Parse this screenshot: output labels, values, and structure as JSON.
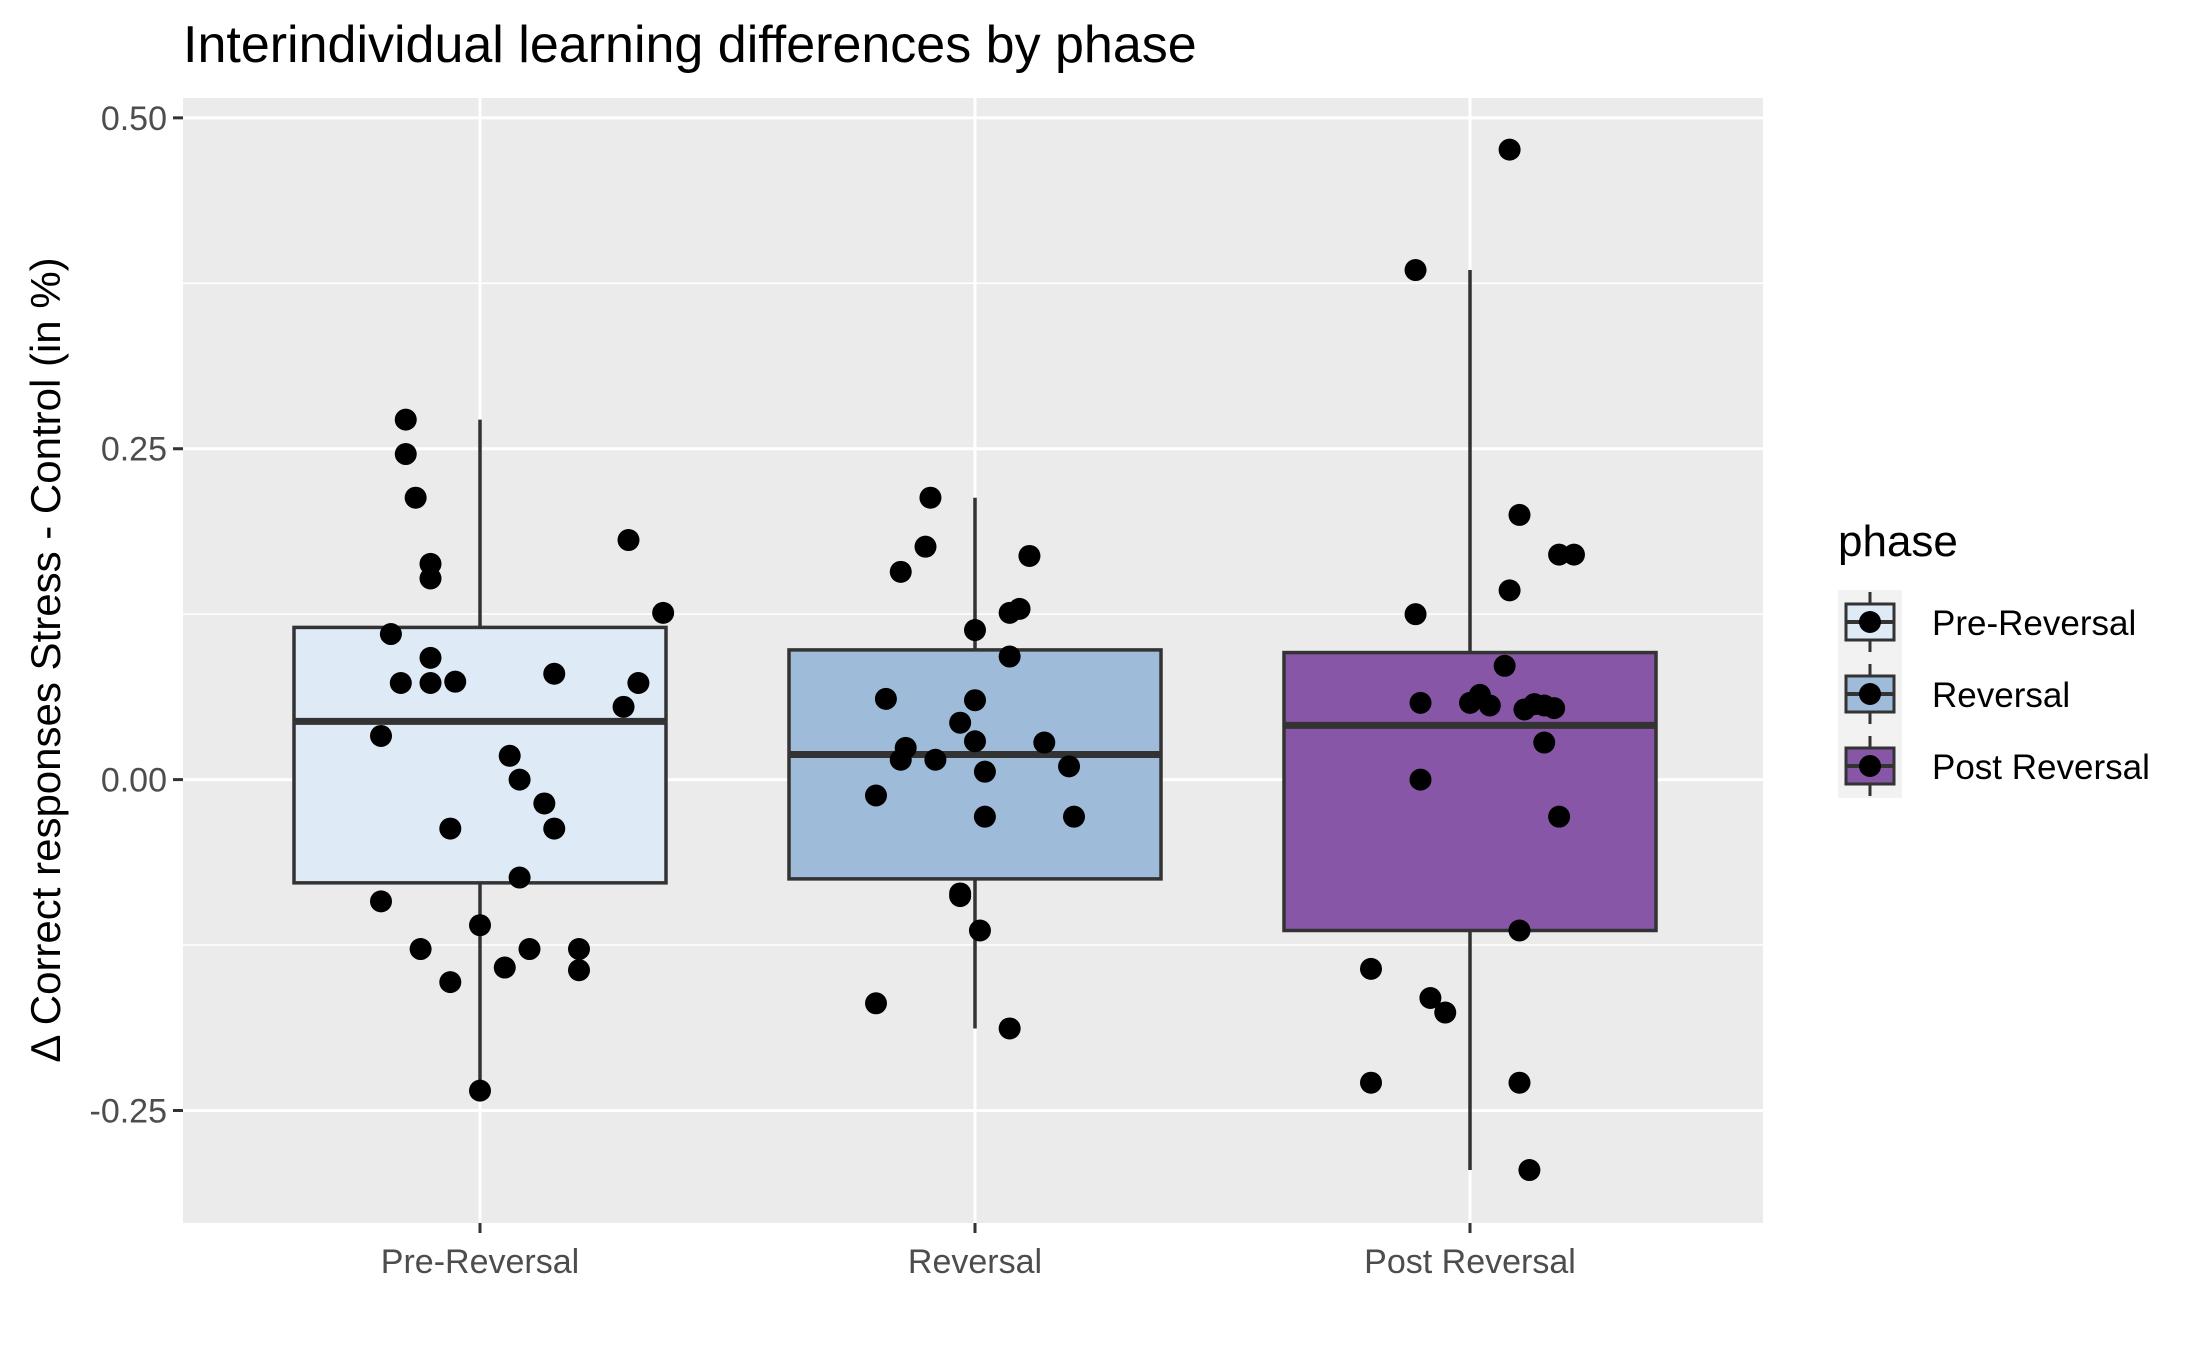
{
  "chart_data": {
    "type": "box",
    "title": "Interindividual learning differences by phase",
    "xlabel": "",
    "ylabel": "Δ Correct responses Stress - Control (in %)",
    "categories": [
      "Pre-Reversal",
      "Reversal",
      "Post Reversal"
    ],
    "ylim": [
      -0.335,
      0.515
    ],
    "yticks": [
      -0.25,
      0.0,
      0.25,
      0.5
    ],
    "ytick_labels": [
      "-0.25",
      "0.00",
      "0.25",
      "0.50"
    ],
    "grid": true,
    "legend": {
      "title": "phase",
      "placement": "right",
      "entries": [
        "Pre-Reversal",
        "Reversal",
        "Post Reversal"
      ]
    },
    "boxes": [
      {
        "category": "Pre-Reversal",
        "q1": -0.078,
        "median": 0.044,
        "q3": 0.115,
        "whisker_low": -0.235,
        "whisker_high": 0.272,
        "fill": "#deebf7"
      },
      {
        "category": "Reversal",
        "q1": -0.075,
        "median": 0.019,
        "q3": 0.098,
        "whisker_low": -0.188,
        "whisker_high": 0.213,
        "fill": "#9ebcda"
      },
      {
        "category": "Post Reversal",
        "q1": -0.114,
        "median": 0.041,
        "q3": 0.096,
        "whisker_low": -0.295,
        "whisker_high": 0.385,
        "fill": "#8856a7"
      }
    ],
    "points": [
      {
        "category": "Pre-Reversal",
        "jitter": [
          -0.15,
          -0.15,
          -0.13,
          0.3,
          -0.1,
          -0.1,
          -0.18,
          -0.1,
          0.37,
          0.15,
          -0.1,
          -0.16,
          -0.05,
          0.32,
          0.29,
          -0.2,
          0.06,
          0.08,
          0.13,
          -0.06,
          0.15,
          0.08,
          -0.2,
          0.0,
          0.1,
          0.2,
          0.2,
          -0.06,
          0.0,
          -0.12,
          0.05
        ],
        "y": [
          0.272,
          0.246,
          0.213,
          0.181,
          0.163,
          0.152,
          0.11,
          0.092,
          0.126,
          0.08,
          0.073,
          0.073,
          0.074,
          0.073,
          0.055,
          0.033,
          0.018,
          0.0,
          -0.018,
          -0.037,
          -0.037,
          -0.074,
          -0.092,
          -0.11,
          -0.128,
          -0.128,
          -0.144,
          -0.153,
          -0.235,
          -0.128,
          -0.142
        ]
      },
      {
        "category": "Reversal",
        "jitter": [
          -0.09,
          -0.1,
          -0.15,
          0.11,
          0.07,
          0.09,
          0.0,
          0.07,
          -0.18,
          0.0,
          -0.03,
          0.0,
          -0.14,
          -0.15,
          -0.08,
          0.02,
          0.14,
          0.19,
          0.2,
          0.02,
          -0.2,
          -0.03,
          -0.03,
          0.01,
          -0.2,
          0.07
        ],
        "y": [
          0.213,
          0.176,
          0.157,
          0.169,
          0.126,
          0.129,
          0.113,
          0.093,
          0.061,
          0.06,
          0.043,
          0.029,
          0.024,
          0.015,
          0.015,
          0.006,
          0.028,
          0.01,
          -0.028,
          -0.028,
          -0.012,
          -0.088,
          -0.086,
          -0.114,
          -0.169,
          -0.188
        ]
      },
      {
        "category": "Post Reversal",
        "jitter": [
          0.08,
          -0.11,
          0.1,
          0.08,
          0.18,
          0.21,
          -0.11,
          0.07,
          0.02,
          0.0,
          0.13,
          0.11,
          -0.1,
          0.04,
          0.15,
          0.17,
          0.15,
          -0.1,
          0.18,
          -0.2,
          -0.08,
          -0.05,
          0.1,
          0.1,
          -0.2,
          0.12
        ],
        "y": [
          0.476,
          0.385,
          0.2,
          0.143,
          0.17,
          0.17,
          0.125,
          0.086,
          0.064,
          0.058,
          0.057,
          0.053,
          0.058,
          0.056,
          0.056,
          0.054,
          0.028,
          0.0,
          -0.028,
          -0.143,
          -0.165,
          -0.176,
          -0.114,
          -0.229,
          -0.229,
          -0.295
        ]
      }
    ]
  }
}
